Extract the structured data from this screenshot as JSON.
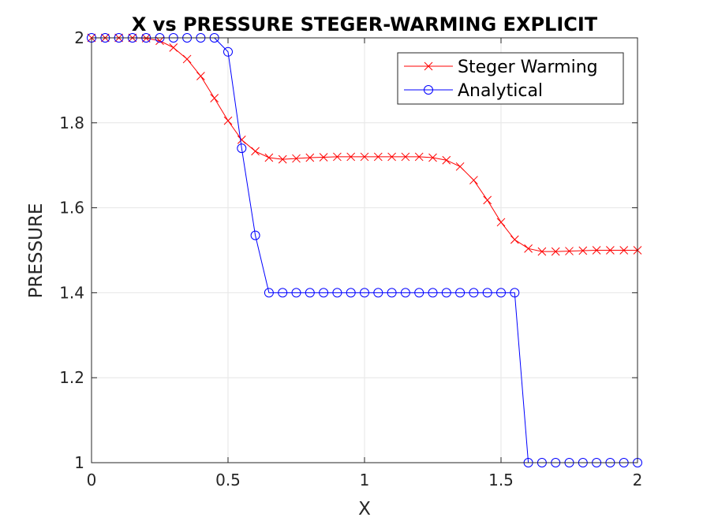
{
  "chart_data": {
    "type": "line",
    "title": "X vs PRESSURE STEGER-WARMING EXPLICIT",
    "xlabel": "X",
    "ylabel": "PRESSURE",
    "xlim": [
      0,
      2
    ],
    "ylim": [
      1,
      2
    ],
    "xticks": [
      0,
      0.5,
      1,
      1.5,
      2
    ],
    "xtick_labels": [
      "0",
      "0.5",
      "1",
      "1.5",
      "2"
    ],
    "yticks": [
      1,
      1.2,
      1.4,
      1.6,
      1.8,
      2
    ],
    "ytick_labels": [
      "1",
      "1.2",
      "1.4",
      "1.6",
      "1.8",
      "2"
    ],
    "grid": true,
    "legend_position": "top-right",
    "series": [
      {
        "name": "Steger Warming",
        "color": "#ff0000",
        "marker": "x",
        "x": [
          0,
          0.05,
          0.1,
          0.15,
          0.2,
          0.25,
          0.3,
          0.35,
          0.4,
          0.45,
          0.5,
          0.55,
          0.6,
          0.65,
          0.7,
          0.75,
          0.8,
          0.85,
          0.9,
          0.95,
          1.0,
          1.05,
          1.1,
          1.15,
          1.2,
          1.25,
          1.3,
          1.35,
          1.4,
          1.45,
          1.5,
          1.55,
          1.6,
          1.65,
          1.7,
          1.75,
          1.8,
          1.85,
          1.9,
          1.95,
          2.0
        ],
        "y": [
          2.0,
          2.0,
          2.0,
          2.0,
          1.999,
          1.993,
          1.977,
          1.95,
          1.91,
          1.858,
          1.805,
          1.76,
          1.733,
          1.718,
          1.714,
          1.716,
          1.718,
          1.719,
          1.72,
          1.72,
          1.72,
          1.72,
          1.72,
          1.72,
          1.72,
          1.718,
          1.712,
          1.697,
          1.665,
          1.618,
          1.566,
          1.525,
          1.504,
          1.497,
          1.497,
          1.498,
          1.499,
          1.5,
          1.5,
          1.5,
          1.5
        ]
      },
      {
        "name": "Analytical",
        "color": "#0000ff",
        "marker": "o",
        "x": [
          0,
          0.05,
          0.1,
          0.15,
          0.2,
          0.25,
          0.3,
          0.35,
          0.4,
          0.45,
          0.5,
          0.55,
          0.6,
          0.65,
          0.7,
          0.75,
          0.8,
          0.85,
          0.9,
          0.95,
          1.0,
          1.05,
          1.1,
          1.15,
          1.2,
          1.25,
          1.3,
          1.35,
          1.4,
          1.45,
          1.5,
          1.55,
          1.6,
          1.65,
          1.7,
          1.75,
          1.8,
          1.85,
          1.9,
          1.95,
          2.0
        ],
        "y": [
          2.0,
          2.0,
          2.0,
          2.0,
          2.0,
          2.0,
          2.0,
          2.0,
          2.0,
          2.0,
          1.967,
          1.74,
          1.535,
          1.4,
          1.4,
          1.4,
          1.4,
          1.4,
          1.4,
          1.4,
          1.4,
          1.4,
          1.4,
          1.4,
          1.4,
          1.4,
          1.4,
          1.4,
          1.4,
          1.4,
          1.4,
          1.4,
          1.0,
          1.0,
          1.0,
          1.0,
          1.0,
          1.0,
          1.0,
          1.0,
          1.0
        ]
      }
    ]
  }
}
